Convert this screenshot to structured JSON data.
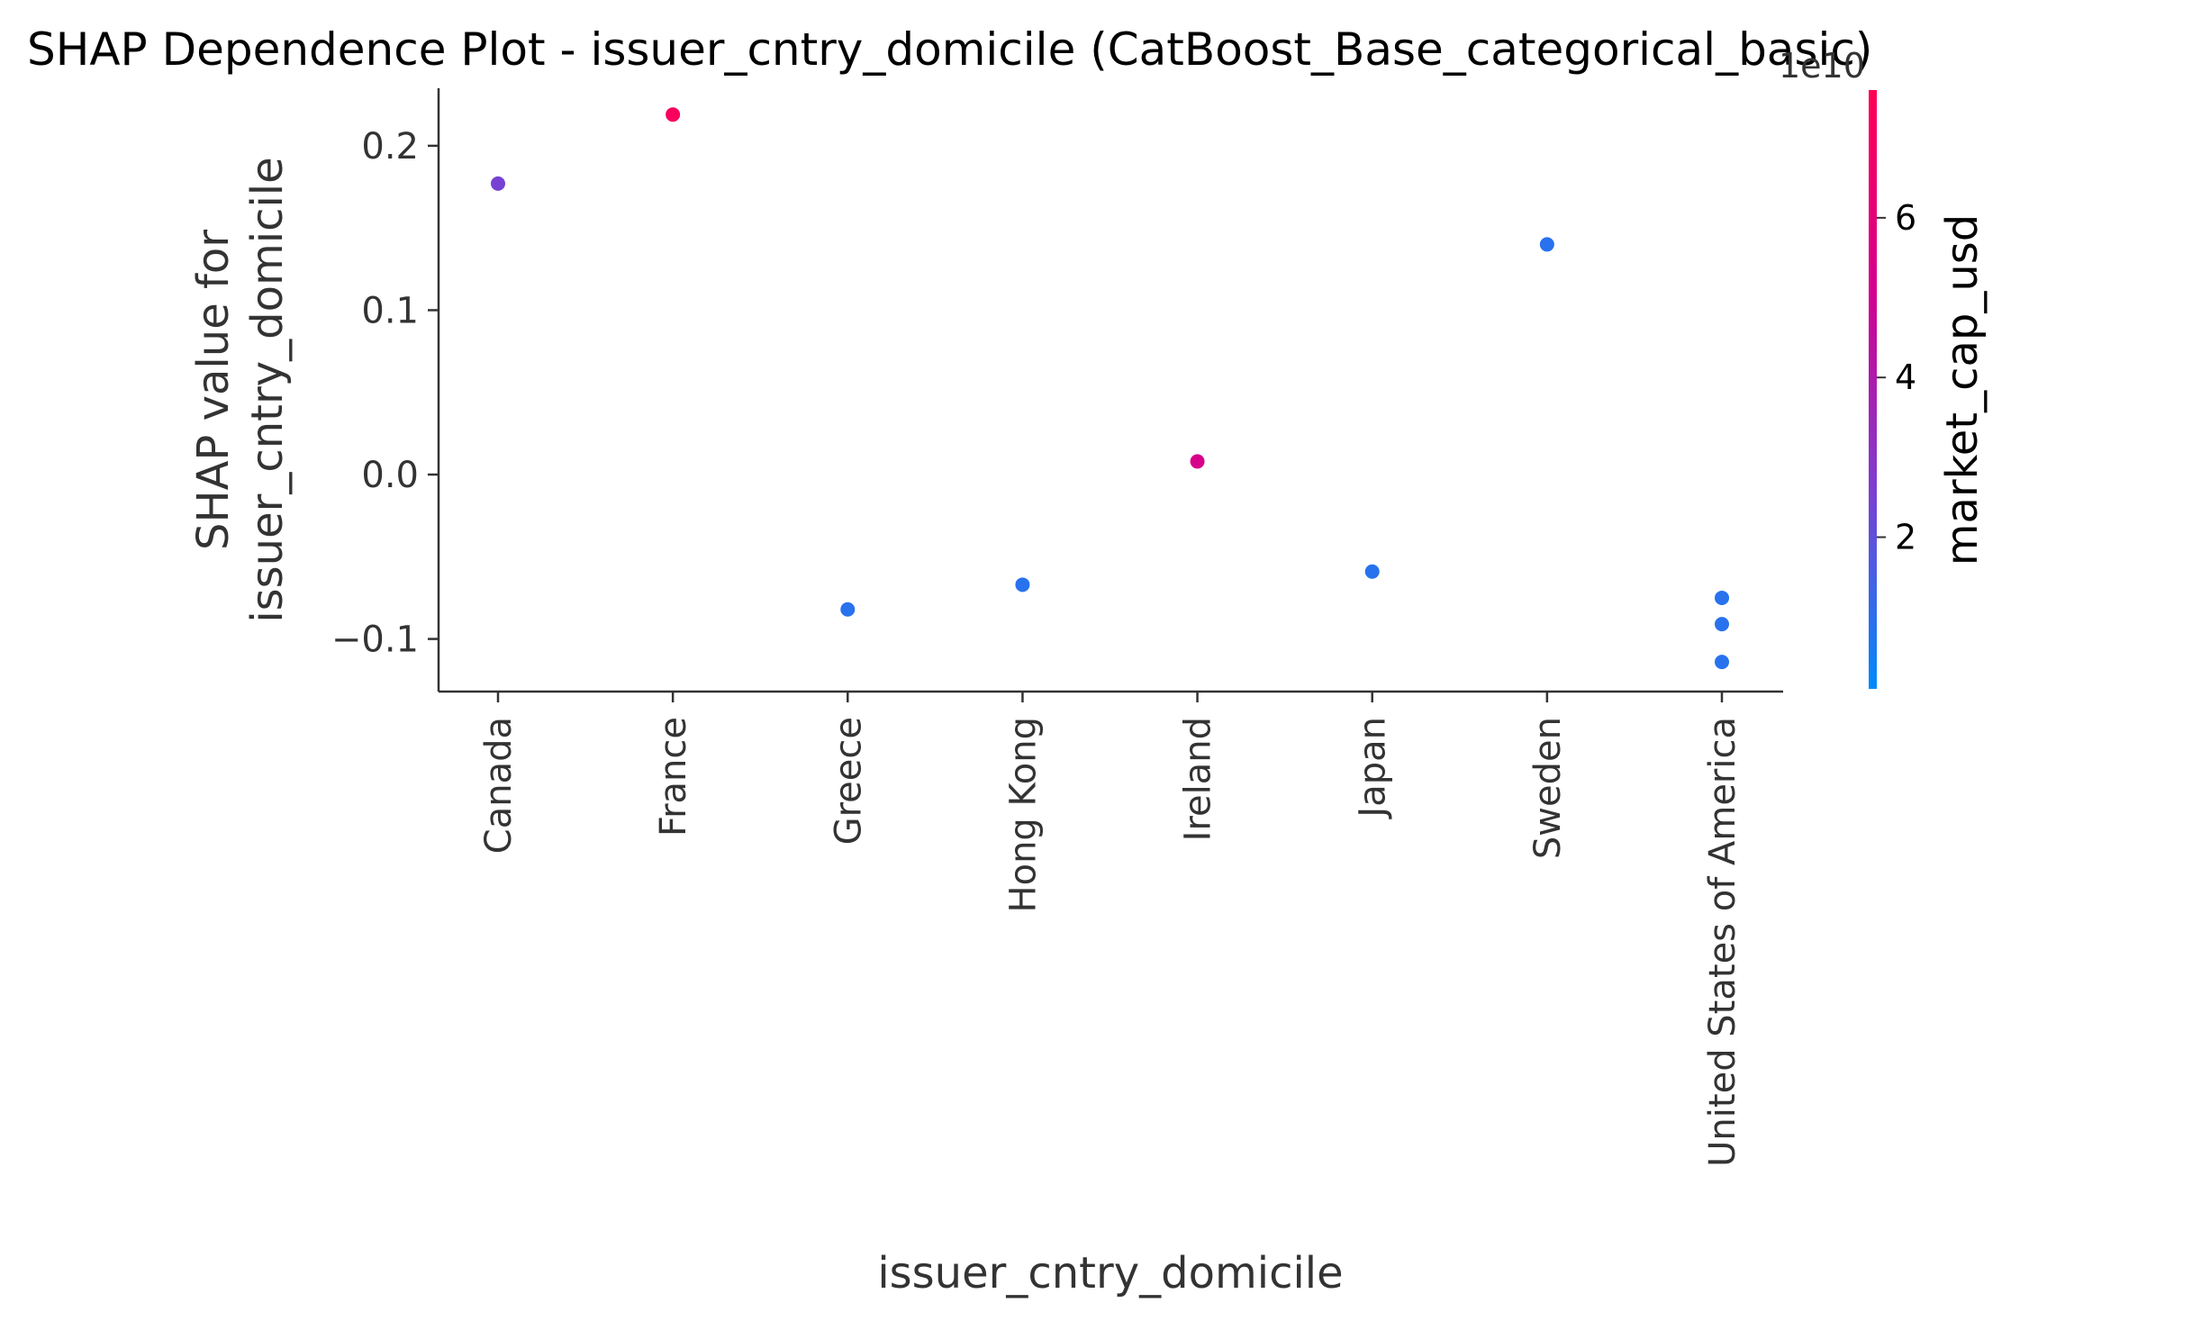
{
  "chart_data": {
    "type": "scatter",
    "title": "SHAP Dependence Plot - issuer_cntry_domicile (CatBoost_Base_categorical_basic)",
    "xlabel": "issuer_cntry_domicile",
    "ylabel_lines": [
      "SHAP value for",
      "issuer_cntry_domicile"
    ],
    "categories": [
      "Canada",
      "France",
      "Greece",
      "Hong Kong",
      "Ireland",
      "Japan",
      "Sweden",
      "United States of America"
    ],
    "y_ticks": [
      0.2,
      0.1,
      0.0,
      -0.1
    ],
    "y_tick_labels": [
      "0.2",
      "0.1",
      "0.0",
      "−0.1"
    ],
    "ylim": [
      -0.132,
      0.235
    ],
    "points": [
      {
        "x": "Canada",
        "y": 0.177,
        "color_value": 2.5
      },
      {
        "x": "France",
        "y": 0.219,
        "color_value": 7.2
      },
      {
        "x": "Greece",
        "y": -0.082,
        "color_value": 0.9
      },
      {
        "x": "Hong Kong",
        "y": -0.067,
        "color_value": 0.9
      },
      {
        "x": "Ireland",
        "y": 0.008,
        "color_value": 5.3
      },
      {
        "x": "Japan",
        "y": -0.059,
        "color_value": 0.9
      },
      {
        "x": "Sweden",
        "y": 0.14,
        "color_value": 0.9
      },
      {
        "x": "United States of America",
        "y": -0.075,
        "color_value": 0.9
      },
      {
        "x": "United States of America",
        "y": -0.091,
        "color_value": 0.9
      },
      {
        "x": "United States of America",
        "y": -0.114,
        "color_value": 0.9
      }
    ],
    "colorbar": {
      "label": "market_cap_usd",
      "offset_text": "1e10",
      "range": [
        0.1,
        7.6
      ],
      "ticks": [
        2,
        4,
        6
      ],
      "tick_labels": [
        "2",
        "4",
        "6"
      ],
      "colors": [
        "#008afb",
        "#7c3fd1",
        "#d3008f",
        "#ff0052"
      ]
    },
    "grid": false,
    "legend": "colorbar-right"
  }
}
